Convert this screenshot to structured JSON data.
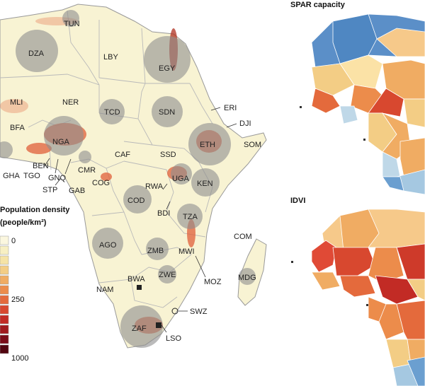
{
  "panels": {
    "spar_title": "SPAR capacity",
    "idvi_title": "IDVI"
  },
  "legend": {
    "title_line1": "Population density",
    "title_line2": "(people/km²)",
    "tick_0": "0",
    "tick_250": "250",
    "tick_1000": "1000",
    "colors": [
      "#fbf7df",
      "#f7efc3",
      "#f5e3a6",
      "#f3cd85",
      "#f0ac63",
      "#ec8c4b",
      "#e46a3c",
      "#d8482f",
      "#c22b25",
      "#a01a1e",
      "#7a0c18",
      "#52050f"
    ]
  },
  "map_colors": {
    "land": "#f8f3d3",
    "border": "#b9b9b9",
    "circle": "#8f8f8f",
    "ocean": "#ffffff",
    "dense": "#e0603a"
  },
  "countries": {
    "tun": "TUN",
    "dza": "DZA",
    "lby": "LBY",
    "egy": "EGY",
    "mli": "MLI",
    "ner": "NER",
    "tcd": "TCD",
    "sdn": "SDN",
    "eri": "ERI",
    "dji": "DJI",
    "bfa": "BFA",
    "nga": "NGA",
    "eth": "ETH",
    "som": "SOM",
    "caf": "CAF",
    "ssd": "SSD",
    "ben": "BEN",
    "gha": "GHA",
    "tgo": "TGO",
    "gnq": "GNQ",
    "cmr": "CMR",
    "stp": "STP",
    "gab": "GAB",
    "cog": "COG",
    "uga": "UGA",
    "ken": "KEN",
    "rwa": "RWA",
    "cod": "COD",
    "bdi": "BDI",
    "tza": "TZA",
    "com": "COM",
    "ago": "AGO",
    "zmb": "ZMB",
    "mwi": "MWI",
    "zwe": "ZWE",
    "moz": "MOZ",
    "mdg": "MDG",
    "nam": "NAM",
    "bwa": "BWA",
    "swz": "SWZ",
    "zaf": "ZAF",
    "lso": "LSO"
  }
}
